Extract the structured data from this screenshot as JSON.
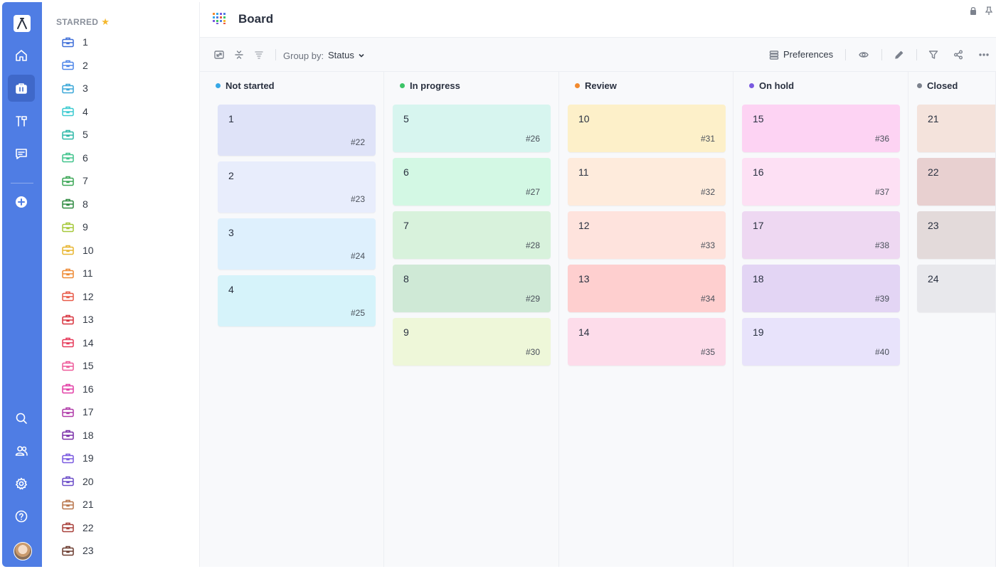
{
  "app": {
    "page_title": "Board"
  },
  "rail": {
    "items": [
      "home-icon",
      "briefcase-icon",
      "tools-icon",
      "chat-icon",
      "add-icon",
      "search-icon",
      "users-icon",
      "gear-icon",
      "help-icon"
    ],
    "accent": "#4f7de4"
  },
  "starred": {
    "title": "STARRED",
    "projects": [
      {
        "label": "1",
        "color": "#3f6fd8"
      },
      {
        "label": "2",
        "color": "#4f86e8"
      },
      {
        "label": "3",
        "color": "#3aa7d8"
      },
      {
        "label": "4",
        "color": "#3ccad0"
      },
      {
        "label": "5",
        "color": "#2fb8a8"
      },
      {
        "label": "6",
        "color": "#40c48c"
      },
      {
        "label": "7",
        "color": "#3aa655"
      },
      {
        "label": "8",
        "color": "#2f8a40"
      },
      {
        "label": "9",
        "color": "#a6c83a"
      },
      {
        "label": "10",
        "color": "#e8b530"
      },
      {
        "label": "11",
        "color": "#ee8a34"
      },
      {
        "label": "12",
        "color": "#e85a48"
      },
      {
        "label": "13",
        "color": "#d8333e"
      },
      {
        "label": "14",
        "color": "#e63a5a"
      },
      {
        "label": "15",
        "color": "#ee5a9a"
      },
      {
        "label": "16",
        "color": "#e23ea6"
      },
      {
        "label": "17",
        "color": "#b03aa8"
      },
      {
        "label": "18",
        "color": "#7a2ea8"
      },
      {
        "label": "19",
        "color": "#7a5ae0"
      },
      {
        "label": "20",
        "color": "#6a4cc8"
      },
      {
        "label": "21",
        "color": "#b8754a"
      },
      {
        "label": "22",
        "color": "#a8403a"
      },
      {
        "label": "23",
        "color": "#6a3a2e"
      }
    ]
  },
  "toolbar": {
    "group_by_label": "Group by:",
    "group_by_value": "Status",
    "preferences_label": "Preferences"
  },
  "columns": [
    {
      "title": "Not started",
      "dot": "#36a8e6",
      "cards": [
        {
          "title": "1",
          "id": "#22",
          "color": "#dfe3f8"
        },
        {
          "title": "2",
          "id": "#23",
          "color": "#e8edfc"
        },
        {
          "title": "3",
          "id": "#24",
          "color": "#def0fd"
        },
        {
          "title": "4",
          "id": "#25",
          "color": "#d6f3fa"
        }
      ]
    },
    {
      "title": "In progress",
      "dot": "#3cc467",
      "cards": [
        {
          "title": "5",
          "id": "#26",
          "color": "#d7f5ef"
        },
        {
          "title": "6",
          "id": "#27",
          "color": "#d3f8e4"
        },
        {
          "title": "7",
          "id": "#28",
          "color": "#d8f2dc"
        },
        {
          "title": "8",
          "id": "#29",
          "color": "#cfe9d6"
        },
        {
          "title": "9",
          "id": "#30",
          "color": "#eef7d9"
        }
      ]
    },
    {
      "title": "Review",
      "dot": "#f28a2e",
      "cards": [
        {
          "title": "10",
          "id": "#31",
          "color": "#fdf0c9"
        },
        {
          "title": "11",
          "id": "#32",
          "color": "#feebdc"
        },
        {
          "title": "12",
          "id": "#33",
          "color": "#fee3dd"
        },
        {
          "title": "13",
          "id": "#34",
          "color": "#fecfcf"
        },
        {
          "title": "14",
          "id": "#35",
          "color": "#fddcea"
        }
      ]
    },
    {
      "title": "On hold",
      "dot": "#7a5ae0",
      "cards": [
        {
          "title": "15",
          "id": "#36",
          "color": "#fdd3f3"
        },
        {
          "title": "16",
          "id": "#37",
          "color": "#fde0f4"
        },
        {
          "title": "17",
          "id": "#38",
          "color": "#eed8f2"
        },
        {
          "title": "18",
          "id": "#39",
          "color": "#e3d5f4"
        },
        {
          "title": "19",
          "id": "#40",
          "color": "#e8e3fb"
        }
      ]
    },
    {
      "title": "Closed",
      "dot": "#7c828d",
      "cards": [
        {
          "title": "21",
          "id": "",
          "color": "#f4e3dc"
        },
        {
          "title": "22",
          "id": "",
          "color": "#e8d0d0"
        },
        {
          "title": "23",
          "id": "",
          "color": "#e3dada"
        },
        {
          "title": "24",
          "id": "",
          "color": "#e8e8ec"
        }
      ]
    }
  ]
}
